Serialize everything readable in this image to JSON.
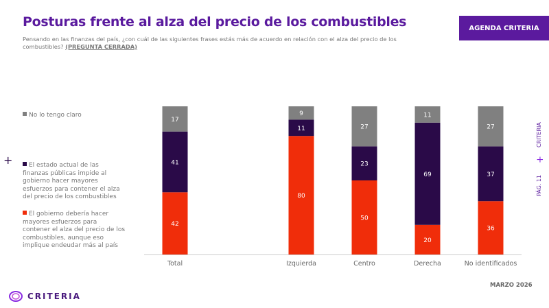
{
  "header": {
    "title": "Posturas frente al alza del precio de los combustibles",
    "subtitle": "Pensando en las finanzas del país, ¿con cuál de las siguientes frases estás más de acuerdo en relación con el alza del precio de los combustibles?",
    "subtitle_tag": "(PREGUNTA CERRADA)",
    "badge": "AGENDA CRITERIA"
  },
  "side": {
    "brand": "CRITERIA",
    "page": "PÁG. 11",
    "sep": "+"
  },
  "footer": {
    "date": "MARZO 2026",
    "logo": "CRITERIA"
  },
  "chart_data": {
    "type": "bar",
    "stacked": true,
    "ylim": [
      0,
      100
    ],
    "grid": false,
    "legend_position": "left",
    "categories": [
      "Total",
      "Izquierda",
      "Centro",
      "Derecha",
      "No identificados"
    ],
    "series": [
      {
        "name": "El gobierno debería hacer mayores esfuerzos para contener el alza del precio de los combustibles, aunque eso implique endeudar más al país",
        "color": "#f02d0a",
        "values": [
          42,
          80,
          50,
          20,
          36
        ]
      },
      {
        "name": "El estado actual de las finanzas públicas impide al gobierno hacer mayores esfuerzos para contener el alza del precio de los combustibles",
        "color": "#2a0a48",
        "values": [
          41,
          11,
          23,
          69,
          37
        ]
      },
      {
        "name": "No lo tengo claro",
        "color": "#808080",
        "values": [
          17,
          9,
          27,
          11,
          27
        ]
      }
    ]
  }
}
